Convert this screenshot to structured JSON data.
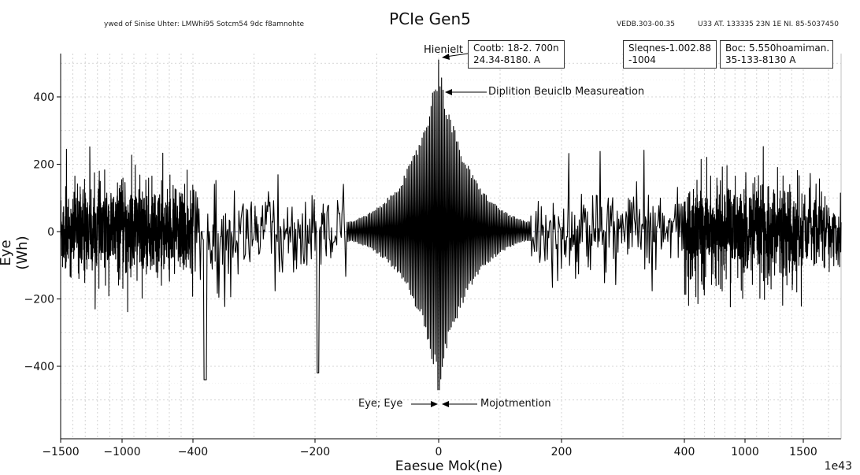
{
  "header": {
    "left_text": "ywed of Sinise Uhter: LMWhi95 Sotcm54 9dc f8amnohte",
    "right_text_1": "VEDB.303-00.35",
    "right_text_2": "U33 AT. 133335 23N 1E  NI. 85-5037450"
  },
  "annotations": {
    "peak_label": "Hienielt",
    "box_left_line1": "Cootb: 18-2. 700n",
    "box_left_line2": "24.34-8180. A",
    "box_mid_line1": "Sleqnes-1.002.88",
    "box_mid_line2": "-1004",
    "box_right_line1": "Boc: 5.550hoamiman.",
    "box_right_line2": "35-133-8130 A",
    "arrow_upper_label": "Diplition Beuiclb Measureation",
    "arrow_lower_left_label": "Eye; Eye",
    "arrow_lower_right_label": "Mojotmention"
  },
  "chart_data": {
    "type": "line",
    "title": "PCIe Gen5",
    "xlabel": "Eaesue Mok(ne)",
    "ylabel": "Eye (Wh)",
    "x_exponent_label": "1e43",
    "xlim": [
      -1500,
      1650
    ],
    "ylim": [
      -500,
      520
    ],
    "xticks": [
      -1500,
      -1000,
      -400,
      -200,
      0,
      200,
      400,
      1000,
      1500
    ],
    "xtick_labels": [
      "−1500",
      "−1000",
      "−400",
      "−200",
      "0",
      "200",
      "400",
      "1000",
      "1500"
    ],
    "yticks": [
      -400,
      -200,
      0,
      200,
      400
    ],
    "ytick_labels": [
      "−400",
      "−200",
      "0",
      "200",
      "400"
    ],
    "grid": true,
    "series": [
      {
        "color": "#000000",
        "description_points": {
          "noise_amplitude_typical": 120,
          "noise_spike_max": 260,
          "noise_spike_min": -440,
          "peak_positive": 510,
          "peak_negative": -470,
          "peak_x": 0,
          "envelope_half_width": 120
        }
      }
    ]
  }
}
